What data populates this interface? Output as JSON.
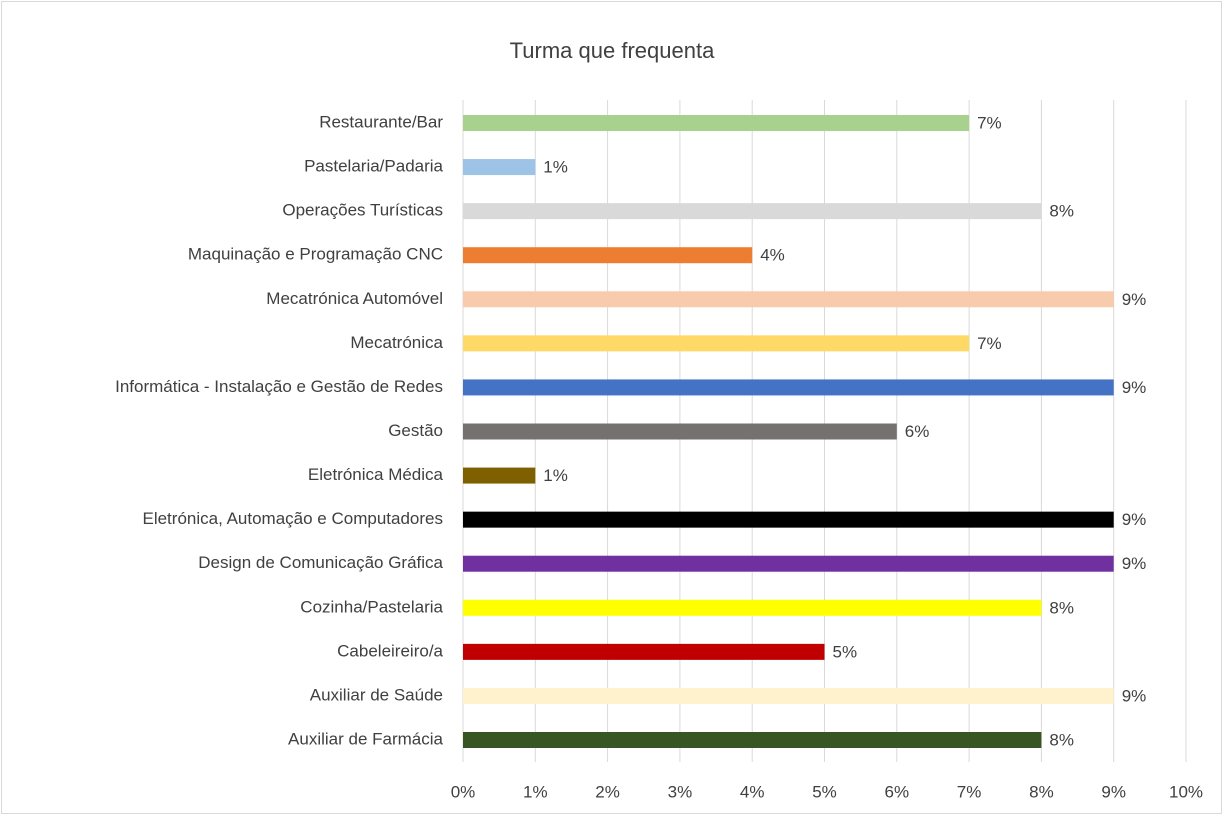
{
  "chart_data": {
    "type": "barh",
    "title": "Turma que frequenta",
    "categories": [
      "Restaurante/Bar",
      "Pastelaria/Padaria",
      "Operações Turísticas",
      "Maquinação e Programação CNC",
      "Mecatrónica Automóvel",
      "Mecatrónica",
      "Informática - Instalação e Gestão de Redes",
      "Gestão",
      "Eletrónica Médica",
      "Eletrónica, Automação e Computadores",
      "Design de Comunicação Gráfica",
      "Cozinha/Pastelaria",
      "Cabeleireiro/a",
      "Auxiliar de Saúde",
      "Auxiliar de Farmácia"
    ],
    "values": [
      7,
      1,
      8,
      4,
      9,
      7,
      9,
      6,
      1,
      9,
      9,
      8,
      5,
      9,
      8
    ],
    "value_labels": [
      "7%",
      "1%",
      "8%",
      "4%",
      "9%",
      "7%",
      "9%",
      "6%",
      "1%",
      "9%",
      "9%",
      "8%",
      "5%",
      "9%",
      "8%"
    ],
    "colors": [
      "#a9d18e",
      "#9dc3e6",
      "#d9d9d9",
      "#ed7d31",
      "#f8cbad",
      "#ffd966",
      "#4472c4",
      "#767171",
      "#7f6000",
      "#000000",
      "#7030a0",
      "#ffff00",
      "#c00000",
      "#fff2cc",
      "#375623"
    ],
    "xlim": [
      0,
      10
    ],
    "xticks": [
      {
        "value": 0,
        "label": "0%"
      },
      {
        "value": 1,
        "label": "1%"
      },
      {
        "value": 2,
        "label": "2%"
      },
      {
        "value": 3,
        "label": "3%"
      },
      {
        "value": 4,
        "label": "4%"
      },
      {
        "value": 5,
        "label": "5%"
      },
      {
        "value": 6,
        "label": "6%"
      },
      {
        "value": 7,
        "label": "7%"
      },
      {
        "value": 8,
        "label": "8%"
      },
      {
        "value": 9,
        "label": "9%"
      },
      {
        "value": 10,
        "label": "10%"
      }
    ],
    "grid": true
  }
}
